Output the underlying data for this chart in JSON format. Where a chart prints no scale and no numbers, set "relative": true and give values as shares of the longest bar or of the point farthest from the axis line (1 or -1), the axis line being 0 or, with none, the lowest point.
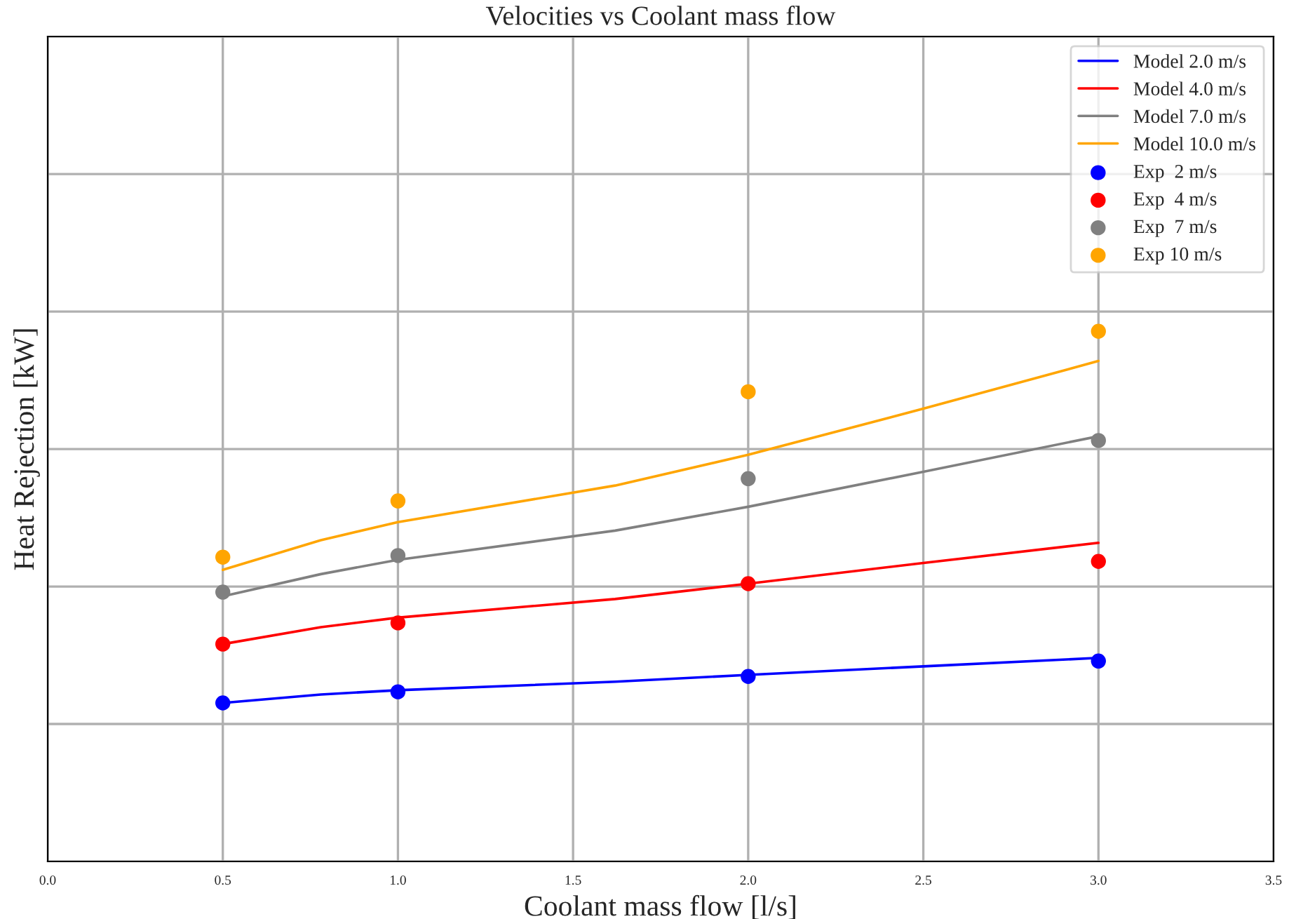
{
  "chart_data": {
    "type": "line",
    "title": "Velocities vs Coolant mass flow",
    "xlabel": "Coolant mass flow [l/s]",
    "ylabel": "Heat Rejection [kW]",
    "relative": true,
    "xlim": [
      0.0,
      3.5
    ],
    "xticks": [
      {
        "value": 0.0,
        "label": "0.0"
      },
      {
        "value": 0.5,
        "label": "0.5"
      },
      {
        "value": 1.0,
        "label": "1.0"
      },
      {
        "value": 1.5,
        "label": "1.5"
      },
      {
        "value": 2.0,
        "label": "2.0"
      },
      {
        "value": 2.5,
        "label": "2.5"
      },
      {
        "value": 3.0,
        "label": "3.0"
      },
      {
        "value": 3.5,
        "label": "3.5"
      }
    ],
    "tick_labels": "x",
    "grid": true,
    "legend": "top right",
    "series": [
      {
        "name": "Model 2.0 m/s",
        "color": "#0000ff",
        "marker": "none",
        "x": [
          0.5,
          0.78,
          1.0,
          1.62,
          2.0,
          2.5,
          3.0
        ],
        "values": [
          0.299,
          0.315,
          0.323,
          0.339,
          0.352,
          0.368,
          0.384
        ]
      },
      {
        "name": "Model 4.0 m/s",
        "color": "#ff0000",
        "marker": "none",
        "x": [
          0.5,
          0.78,
          1.0,
          1.62,
          2.0,
          2.5,
          3.0
        ],
        "values": [
          0.41,
          0.442,
          0.46,
          0.495,
          0.524,
          0.563,
          0.601
        ]
      },
      {
        "name": "Model 7.0 m/s",
        "color": "#808080",
        "marker": "none",
        "x": [
          0.5,
          0.78,
          1.0,
          1.62,
          2.0,
          2.5,
          3.0
        ],
        "values": [
          0.5,
          0.542,
          0.569,
          0.624,
          0.669,
          0.735,
          0.802
        ]
      },
      {
        "name": "Model 10.0 m/s",
        "color": "#ffa500",
        "marker": "none",
        "x": [
          0.5,
          0.78,
          1.0,
          1.62,
          2.0,
          2.5,
          3.0
        ],
        "values": [
          0.55,
          0.606,
          0.64,
          0.709,
          0.767,
          0.854,
          0.944
        ]
      },
      {
        "name": "Exp  2 m/s",
        "type": "scatter",
        "color": "#0000ff",
        "marker": "circle",
        "x": [
          0.5,
          1.0,
          2.0,
          3.0
        ],
        "values": [
          0.299,
          0.32,
          0.349,
          0.378
        ]
      },
      {
        "name": "Exp  4 m/s",
        "type": "scatter",
        "color": "#ff0000",
        "marker": "circle",
        "x": [
          0.5,
          1.0,
          2.0,
          3.0
        ],
        "values": [
          0.41,
          0.45,
          0.524,
          0.566
        ]
      },
      {
        "name": "Exp  7 m/s",
        "type": "scatter",
        "color": "#808080",
        "marker": "circle",
        "x": [
          0.5,
          1.0,
          2.0,
          3.0
        ],
        "values": [
          0.508,
          0.577,
          0.722,
          0.794
        ]
      },
      {
        "name": "Exp 10 m/s",
        "type": "scatter",
        "color": "#ffa500",
        "marker": "circle",
        "x": [
          0.5,
          1.0,
          2.0,
          3.0
        ],
        "values": [
          0.574,
          0.68,
          0.886,
          1.0
        ]
      }
    ]
  }
}
